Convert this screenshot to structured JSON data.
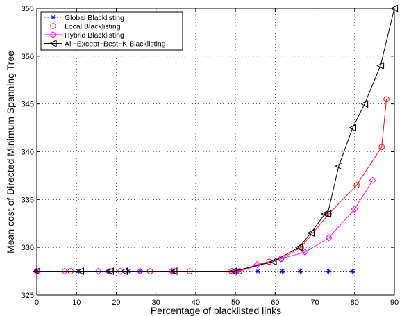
{
  "chart_data": {
    "type": "line",
    "title": "",
    "xlabel": "Percentage of blacklisted links",
    "ylabel": "Mean cost of Directed Minimum Spanning Tree",
    "xlim": [
      0,
      90
    ],
    "ylim": [
      325,
      355
    ],
    "xticks": [
      0,
      10,
      20,
      30,
      40,
      50,
      60,
      70,
      80,
      90
    ],
    "yticks": [
      325,
      330,
      335,
      340,
      345,
      350,
      355
    ],
    "grid": true,
    "legend_position": "top-left",
    "series": [
      {
        "name": "Global Blacklisting",
        "color": "#0000ff",
        "marker": "asterisk",
        "line_style": "dotted",
        "x": [
          0,
          10.5,
          17.8,
          23,
          26,
          34.3,
          50.2,
          55.6,
          61.8,
          66.3,
          73.5,
          79.4
        ],
        "y": [
          327.5,
          327.5,
          327.5,
          327.5,
          327.5,
          327.5,
          327.5,
          327.5,
          327.5,
          327.5,
          327.5,
          327.5
        ]
      },
      {
        "name": "Local Blacklisting",
        "color": "#ff0000",
        "marker": "circle",
        "line_style": "solid",
        "x": [
          0,
          8.5,
          18.5,
          28.5,
          34.5,
          38.5,
          49,
          51,
          58.5,
          61.5,
          66.5,
          73.5,
          80.5,
          86.8,
          88
        ],
        "y": [
          327.5,
          327.5,
          327.5,
          327.5,
          327.5,
          327.5,
          327.5,
          327.5,
          328.5,
          328.8,
          330,
          333.5,
          336.5,
          340.5,
          345.5
        ]
      },
      {
        "name": "Hybrid Blacklisting",
        "color": "#ff00ff",
        "marker": "diamond",
        "line_style": "solid",
        "x": [
          0,
          7,
          15.5,
          21,
          26,
          34,
          49.3,
          50.3,
          55.5,
          61.4,
          67.5,
          73.5,
          80,
          84.5
        ],
        "y": [
          327.5,
          327.5,
          327.5,
          327.5,
          327.5,
          327.5,
          327.5,
          327.5,
          328.2,
          328.8,
          329.5,
          331,
          334,
          337
        ]
      },
      {
        "name": "All−Except−Best−K Blacklisting",
        "color": "#000000",
        "marker": "triangle-left",
        "line_style": "solid",
        "x": [
          0,
          11,
          18.5,
          22,
          34.5,
          49.5,
          59.5,
          66,
          69,
          72.5,
          73.2,
          76,
          79.5,
          82.5,
          86.5,
          90
        ],
        "y": [
          327.5,
          327.5,
          327.5,
          327.5,
          327.5,
          327.5,
          328.5,
          330,
          331.5,
          333.5,
          333.5,
          338.5,
          342.5,
          345,
          349,
          355
        ]
      }
    ]
  }
}
